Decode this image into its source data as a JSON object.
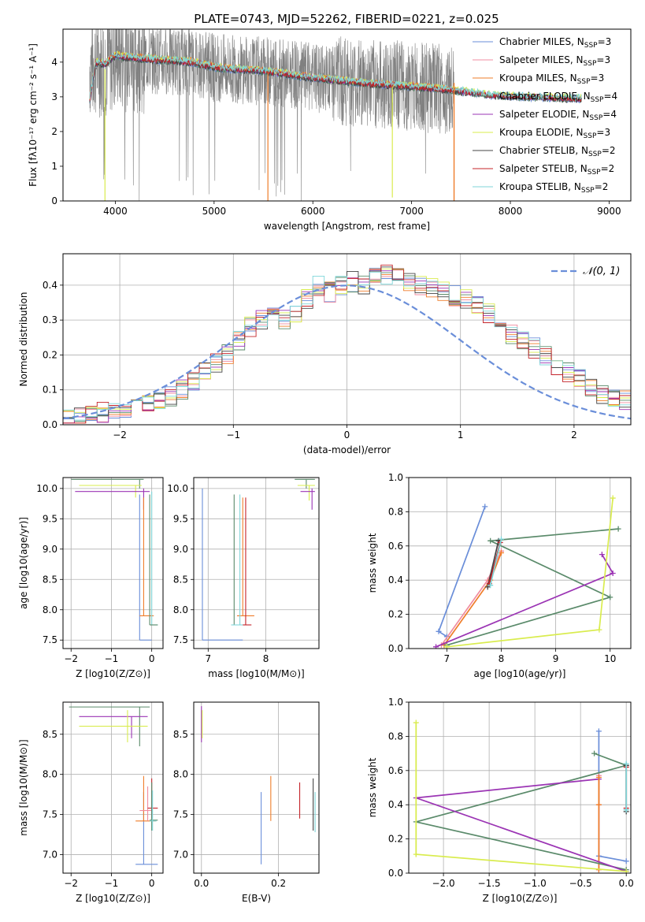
{
  "figure_title": "PLATE=0743, MJD=52262, FIBERID=0221, z=0.025",
  "colors": {
    "blue": "#6a8ed9",
    "pink": "#f08ca0",
    "orange": "#ef7d2a",
    "green": "#5a8a6a",
    "purple": "#9b34b4",
    "yellow": "#d9ec4e",
    "dark": "#444444",
    "red": "#c4242a",
    "cyan": "#7fd6d9",
    "gray": "#808080"
  },
  "chart_data": [
    {
      "id": "spectrum",
      "type": "line",
      "xlabel": "wavelength [Angstrom, rest frame]",
      "ylabel": "Flux [fλ10⁻¹⁷ erg cm⁻² s⁻¹ A⁻¹]",
      "xlim": [
        3470,
        9220
      ],
      "ylim": [
        0,
        4.95
      ],
      "xticks": [
        4000,
        5000,
        6000,
        7000,
        8000,
        9000
      ],
      "yticks": [
        0,
        1,
        2,
        3,
        4
      ],
      "grid": false,
      "legend": "top-right",
      "data_range": [
        3740,
        7430
      ],
      "model_extension_range": [
        7430,
        8720
      ],
      "legend_entries": [
        {
          "name": "Chabrier MILES, N",
          "sub": "SSP",
          "suffix": "=3",
          "color": "#6a8ed9"
        },
        {
          "name": "Salpeter MILES, N",
          "sub": "SSP",
          "suffix": "=3",
          "color": "#f08ca0"
        },
        {
          "name": "Kroupa MILES, N",
          "sub": "SSP",
          "suffix": "=3",
          "color": "#ef7d2a"
        },
        {
          "name": "Chabrier ELODIE, N",
          "sub": "SSP",
          "suffix": "=4",
          "color": "#5a8a6a"
        },
        {
          "name": "Salpeter ELODIE, N",
          "sub": "SSP",
          "suffix": "=4",
          "color": "#9b34b4"
        },
        {
          "name": "Kroupa ELODIE, N",
          "sub": "SSP",
          "suffix": "=3",
          "color": "#d9ec4e"
        },
        {
          "name": "Chabrier STELIB, N",
          "sub": "SSP",
          "suffix": "=2",
          "color": "#444444"
        },
        {
          "name": "Salpeter STELIB, N",
          "sub": "SSP",
          "suffix": "=2",
          "color": "#c4242a"
        },
        {
          "name": "Kroupa STELIB, N",
          "sub": "SSP",
          "suffix": "=2",
          "color": "#7fd6d9"
        }
      ],
      "continuum_x": [
        3740,
        3800,
        3900,
        4000,
        4100,
        4300,
        4500,
        4800,
        5000,
        5200,
        5500,
        6000,
        6500,
        7000,
        7400,
        7800,
        8200,
        8700
      ],
      "continuum_y": [
        3.9,
        4.0,
        3.95,
        4.2,
        4.15,
        4.1,
        4.05,
        4.0,
        3.85,
        3.8,
        3.75,
        3.55,
        3.4,
        3.3,
        3.2,
        3.05,
        3.0,
        2.95
      ]
    },
    {
      "id": "residuals",
      "type": "bar",
      "xlabel": "(data-model)/error",
      "ylabel": "Normed distribution",
      "xlim": [
        -2.5,
        2.5
      ],
      "ylim": [
        0,
        0.49
      ],
      "xticks": [
        -2,
        -1,
        0,
        1,
        2
      ],
      "yticks": [
        0.0,
        0.1,
        0.2,
        0.3,
        0.4
      ],
      "grid": true,
      "legend": "top-right",
      "legend_label": "𝒩(0, 1)",
      "legend_color": "#6a8ed9",
      "bin_width": 0.1,
      "bin_start": -2.5,
      "hist_values": [
        0.02,
        0.025,
        0.03,
        0.035,
        0.04,
        0.05,
        0.055,
        0.06,
        0.07,
        0.08,
        0.1,
        0.12,
        0.15,
        0.18,
        0.2,
        0.24,
        0.28,
        0.3,
        0.32,
        0.3,
        0.32,
        0.36,
        0.4,
        0.38,
        0.4,
        0.41,
        0.4,
        0.42,
        0.43,
        0.42,
        0.41,
        0.4,
        0.39,
        0.38,
        0.37,
        0.36,
        0.34,
        0.32,
        0.3,
        0.26,
        0.24,
        0.22,
        0.2,
        0.17,
        0.15,
        0.13,
        0.11,
        0.09,
        0.08,
        0.07,
        0.065,
        0.06,
        0.055,
        0.05,
        0.04,
        0.035,
        0.03,
        0.03,
        0.028,
        0.025
      ]
    },
    {
      "id": "age-Z",
      "type": "scatter",
      "xlabel": "Z [log10(Z/Z⊙)]",
      "ylabel": "age  [log10(age/yr)]",
      "xlim": [
        -2.2,
        0.28
      ],
      "ylim": [
        7.36,
        10.18
      ],
      "xticks": [
        -2,
        -1,
        0
      ],
      "yticks": [
        7.5,
        8.0,
        8.5,
        9.0,
        9.5,
        10.0
      ],
      "grid": true
    },
    {
      "id": "age-mass",
      "type": "scatter",
      "xlabel": "mass [log10(M/M⊙)]",
      "xlim": [
        6.75,
        8.92
      ],
      "ylim": [
        7.36,
        10.18
      ],
      "xticks": [
        7,
        8
      ],
      "yticks": [
        7.5,
        8.0,
        8.5,
        9.0,
        9.5,
        10.0
      ],
      "grid": true
    },
    {
      "id": "weight-age",
      "type": "line",
      "xlabel": "age  [log10(age/yr)]",
      "ylabel": "mass weight",
      "xlim": [
        6.3,
        10.38
      ],
      "ylim": [
        0,
        1.0
      ],
      "xticks": [
        7,
        8,
        9,
        10
      ],
      "yticks": [
        0.0,
        0.2,
        0.4,
        0.6,
        0.8,
        1.0
      ],
      "grid": true
    },
    {
      "id": "mass-Z",
      "type": "scatter",
      "xlabel": "Z [log10(Z/Z⊙)]",
      "ylabel": "mass [log10(M/M⊙)]",
      "xlim": [
        -2.2,
        0.28
      ],
      "ylim": [
        6.77,
        8.9
      ],
      "xticks": [
        -2,
        -1,
        0
      ],
      "yticks": [
        7.0,
        7.5,
        8.0,
        8.5
      ],
      "grid": true
    },
    {
      "id": "mass-EBV",
      "type": "scatter",
      "xlabel": "E(B-V)",
      "xlim": [
        -0.02,
        0.305
      ],
      "ylim": [
        6.77,
        8.9
      ],
      "xticks": [
        0.0,
        0.2
      ],
      "yticks": [
        7.0,
        7.5,
        8.0,
        8.5
      ],
      "grid": true
    },
    {
      "id": "weight-Z",
      "type": "line",
      "xlabel": "Z [log10(Z/Z⊙)]",
      "ylabel": "mass weight",
      "xlim": [
        -2.38,
        0.05
      ],
      "ylim": [
        0,
        1.0
      ],
      "xticks": [
        -2.0,
        -1.5,
        -1.0,
        -0.5,
        0.0
      ],
      "yticks": [
        0.0,
        0.2,
        0.4,
        0.6,
        0.8,
        1.0
      ],
      "grid": true
    }
  ],
  "models": [
    {
      "color": "#6a8ed9",
      "ebv": 0.16,
      "ssp": [
        {
          "age": 6.85,
          "z": -0.3,
          "w": 0.1,
          "mass": 6.88
        },
        {
          "age": 7.0,
          "z": 0.0,
          "w": 0.07,
          "mass": 7.5
        },
        {
          "age": 7.7,
          "z": -0.3,
          "w": 0.83,
          "mass": 7.72
        }
      ]
    },
    {
      "color": "#f08ca0",
      "ebv": 0.18,
      "ssp": [
        {
          "age": 6.9,
          "z": -0.3,
          "w": 0.02,
          "mass": 7.55
        },
        {
          "age": 7.75,
          "z": -0.3,
          "w": 0.4,
          "mass": 7.5
        },
        {
          "age": 8.0,
          "z": -0.3,
          "w": 0.57,
          "mass": 7.75
        }
      ]
    },
    {
      "color": "#ef7d2a",
      "ebv": 0.18,
      "ssp": [
        {
          "age": 6.95,
          "z": -0.3,
          "w": 0.02,
          "mass": 7.42
        },
        {
          "age": 7.8,
          "z": -0.3,
          "w": 0.4,
          "mass": 7.9
        },
        {
          "age": 8.0,
          "z": -0.3,
          "w": 0.56,
          "mass": 7.95
        }
      ]
    },
    {
      "color": "#5a8a6a",
      "ebv": 0.29,
      "ssp": [
        {
          "age": 7.0,
          "z": 0.0,
          "w": 0.02,
          "mass": 7.43
        },
        {
          "age": 10.0,
          "z": -2.3,
          "w": 0.3,
          "mass": 8.84
        },
        {
          "age": 10.15,
          "z": -0.35,
          "w": 0.7,
          "mass": 8.84
        },
        {
          "age": 7.8,
          "z": 0.0,
          "w": 0.63,
          "mass": 7.43
        }
      ]
    },
    {
      "color": "#9b34b4",
      "ebv": 0.0,
      "ssp": [
        {
          "age": 6.8,
          "z": 0.0,
          "w": 0.01,
          "mass": 8.72
        },
        {
          "age": 9.85,
          "z": -0.3,
          "w": 0.55,
          "mass": 8.72
        },
        {
          "age": 10.05,
          "z": -2.3,
          "w": 0.44,
          "mass": 8.72
        }
      ]
    },
    {
      "color": "#d9ec4e",
      "ebv": 0.0,
      "ssp": [
        {
          "age": 7.0,
          "z": 0.0,
          "w": 0.01,
          "mass": 8.6
        },
        {
          "age": 9.8,
          "z": -2.3,
          "w": 0.11,
          "mass": 8.6
        },
        {
          "age": 10.05,
          "z": -2.3,
          "w": 0.88,
          "mass": 8.6
        }
      ]
    },
    {
      "color": "#444444",
      "ebv": 0.29,
      "ssp": [
        {
          "age": 7.75,
          "z": 0.0,
          "w": 0.36,
          "mass": 7.45
        },
        {
          "age": 7.95,
          "z": 0.0,
          "w": 0.63,
          "mass": 7.45
        }
      ]
    },
    {
      "color": "#c4242a",
      "ebv": 0.26,
      "ssp": [
        {
          "age": 7.78,
          "z": 0.0,
          "w": 0.38,
          "mass": 7.58
        },
        {
          "age": 7.98,
          "z": 0.0,
          "w": 0.62,
          "mass": 7.58
        }
      ]
    },
    {
      "color": "#7fd6d9",
      "ebv": 0.3,
      "ssp": [
        {
          "age": 7.8,
          "z": 0.0,
          "w": 0.37,
          "mass": 7.42
        },
        {
          "age": 8.0,
          "z": 0.0,
          "w": 0.64,
          "mass": 7.42
        }
      ]
    }
  ]
}
